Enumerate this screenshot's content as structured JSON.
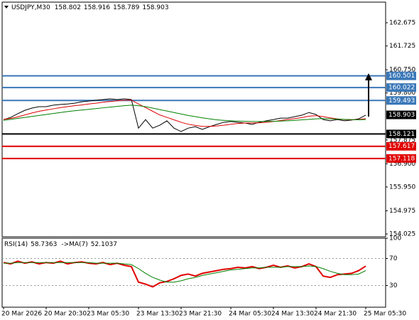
{
  "chart_data": [
    {
      "type": "line",
      "symbol": "USDJPY,M30",
      "ohlc": [
        158.802,
        158.916,
        158.789,
        158.903
      ],
      "ylim": [
        153.91,
        163.52
      ],
      "yticks": [
        162.675,
        161.725,
        {
          "value": 160.75,
          "label": "160.750"
        },
        {
          "value": 159.8,
          "label": "159.800"
        },
        157.875,
        {
          "value": 156.9,
          "label": "156.900"
        },
        {
          "value": 155.95,
          "label": "155.950"
        },
        154.975,
        154.025
      ],
      "series": [
        {
          "color": "#000000",
          "values": [
            158.71,
            158.8,
            158.95,
            159.09,
            159.18,
            159.24,
            159.24,
            159.3,
            159.33,
            159.35,
            159.38,
            159.44,
            159.47,
            159.5,
            159.53,
            159.56,
            159.53,
            159.56,
            159.53,
            158.36,
            158.71,
            158.36,
            158.48,
            158.66,
            158.36,
            158.22,
            158.36,
            158.42,
            158.31,
            158.42,
            158.51,
            158.6,
            158.63,
            158.6,
            158.57,
            158.51,
            158.6,
            158.66,
            158.71,
            158.77,
            158.77,
            158.83,
            158.89,
            159.0,
            158.92,
            158.71,
            158.66,
            158.71,
            158.66,
            158.69,
            158.74,
            158.89
          ]
        },
        {
          "color": "#e00000",
          "values": [
            158.72,
            158.76,
            158.82,
            158.9,
            158.98,
            159.05,
            159.1,
            159.15,
            159.2,
            159.24,
            159.28,
            159.31,
            159.35,
            159.38,
            159.42,
            159.45,
            159.48,
            159.5,
            159.51,
            159.35,
            159.2,
            159.05,
            158.9,
            158.8,
            158.7,
            158.6,
            158.52,
            158.47,
            158.43,
            158.43,
            158.45,
            158.48,
            158.52,
            158.55,
            158.57,
            158.57,
            158.58,
            158.6,
            158.63,
            158.67,
            158.71,
            158.75,
            158.79,
            158.85,
            158.87,
            158.83,
            158.78,
            158.74,
            158.71,
            158.7,
            158.71,
            158.75
          ]
        },
        {
          "color": "#008000",
          "values": [
            158.68,
            158.72,
            158.76,
            158.8,
            158.84,
            158.88,
            158.92,
            158.96,
            159.0,
            159.04,
            159.07,
            159.1,
            159.13,
            159.16,
            159.19,
            159.22,
            159.25,
            159.28,
            159.3,
            159.28,
            159.24,
            159.18,
            159.12,
            159.06,
            159.0,
            158.94,
            158.88,
            158.83,
            158.78,
            158.74,
            158.7,
            158.68,
            158.66,
            158.65,
            158.64,
            158.63,
            158.63,
            158.63,
            158.64,
            158.65,
            158.66,
            158.68,
            158.7,
            158.72,
            158.74,
            158.75,
            158.74,
            158.73,
            158.72,
            158.71,
            158.7,
            158.71
          ]
        }
      ],
      "levels": [
        {
          "value": 160.501,
          "color": "#3a78b8"
        },
        {
          "value": 160.022,
          "color": "#3a78b8"
        },
        {
          "value": 159.493,
          "color": "#3a78b8"
        },
        {
          "value": 158.121,
          "color": "#000000"
        },
        {
          "value": 157.617,
          "color": "#e00000"
        },
        {
          "value": 157.118,
          "color": "#e00000"
        }
      ],
      "last_price": 158.903
    },
    {
      "type": "line",
      "label": "RSI(14)",
      "value": 58.7363,
      "ma_label": "->MA(7)",
      "ma_value": 52.1037,
      "ylim": [
        0,
        100
      ],
      "yticks": [
        100,
        70,
        30
      ],
      "categories": [
        "20 Mar 2026",
        null,
        null,
        null,
        null,
        null,
        "20 Mar 20:30",
        null,
        null,
        null,
        null,
        null,
        "23 Mar 05:30",
        null,
        null,
        null,
        null,
        null,
        null,
        "23 Mar 13:30",
        null,
        null,
        null,
        null,
        null,
        "23 Mar 21:30",
        null,
        null,
        null,
        null,
        null,
        null,
        "24 Mar 05:30",
        null,
        null,
        null,
        null,
        null,
        "24 Mar 13:30",
        null,
        null,
        null,
        null,
        null,
        "24 Mar 21:30",
        null,
        null,
        null,
        null,
        null,
        null,
        "25 Mar 05:30"
      ],
      "series": [
        {
          "color": "#e00000",
          "values": [
            64,
            62,
            66,
            63,
            65,
            62,
            64,
            63,
            66,
            62,
            64,
            65,
            63,
            62,
            64,
            61,
            63,
            60,
            58,
            35,
            32,
            28,
            34,
            36,
            40,
            45,
            47,
            44,
            48,
            50,
            52,
            54,
            55,
            57,
            56,
            58,
            55,
            57,
            60,
            57,
            59,
            56,
            58,
            62,
            58,
            44,
            42,
            46,
            47,
            48,
            52,
            58.74
          ]
        },
        {
          "color": "#008000",
          "values": [
            63,
            63,
            64,
            64,
            64,
            64,
            64,
            64,
            64,
            64,
            64,
            64,
            64,
            63,
            63,
            63,
            63,
            62,
            61,
            55,
            48,
            42,
            38,
            35,
            35,
            37,
            40,
            42,
            45,
            47,
            49,
            51,
            53,
            54,
            55,
            56,
            56,
            57,
            57,
            57,
            58,
            58,
            58,
            59,
            58,
            55,
            51,
            48,
            46,
            46,
            47,
            52.1
          ]
        }
      ]
    }
  ]
}
